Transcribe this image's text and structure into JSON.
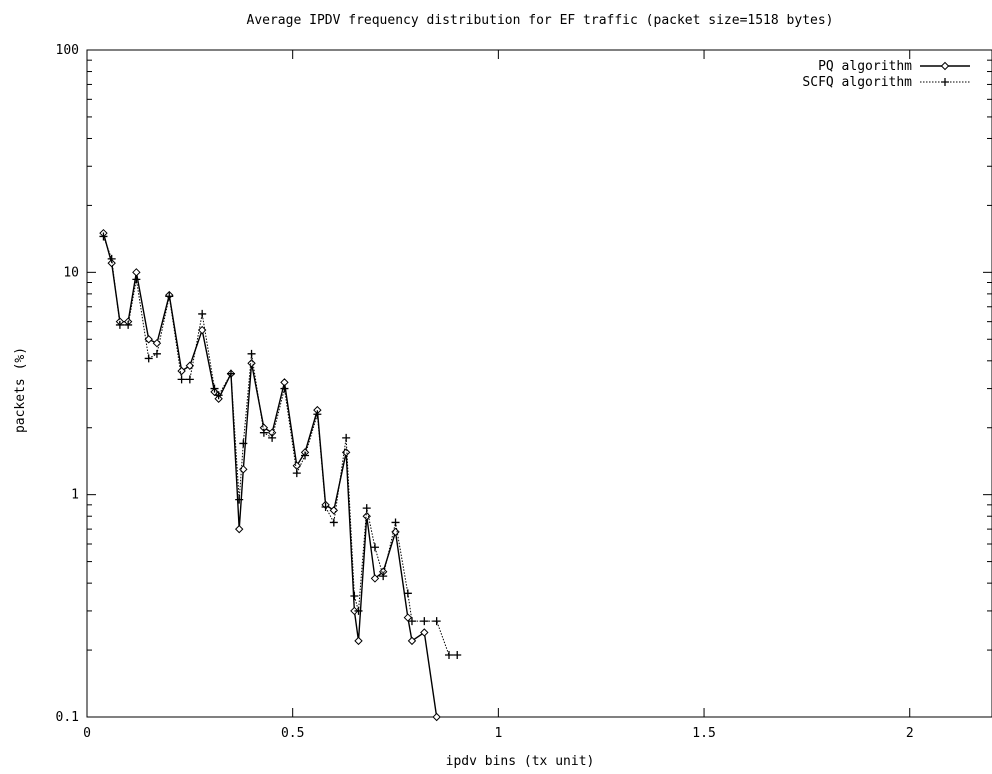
{
  "chart_data": {
    "type": "line",
    "title": "Average IPDV frequency distribution for EF traffic (packet size=1518 bytes)",
    "xlabel": "ipdv bins (tx unit)",
    "ylabel": "packets (%)",
    "xlim": [
      0,
      2.2
    ],
    "ylim": [
      0.1,
      100
    ],
    "y_scale": "log",
    "x_ticks": [
      {
        "value": 0,
        "label": "0"
      },
      {
        "value": 0.5,
        "label": "0.5"
      },
      {
        "value": 1,
        "label": "1"
      },
      {
        "value": 1.5,
        "label": "1.5"
      },
      {
        "value": 2,
        "label": "2"
      }
    ],
    "y_ticks": [
      {
        "value": 0.1,
        "label": "0.1"
      },
      {
        "value": 1,
        "label": "1"
      },
      {
        "value": 10,
        "label": "10"
      },
      {
        "value": 100,
        "label": "100"
      }
    ],
    "grid": false,
    "legend_position": "top-right",
    "series": [
      {
        "name": "PQ algorithm",
        "line": "solid",
        "marker": "diamond",
        "points": [
          [
            0.04,
            15.0
          ],
          [
            0.06,
            11.0
          ],
          [
            0.08,
            6.0
          ],
          [
            0.1,
            6.0
          ],
          [
            0.12,
            10.0
          ],
          [
            0.15,
            5.0
          ],
          [
            0.17,
            4.8
          ],
          [
            0.2,
            7.9
          ],
          [
            0.23,
            3.6
          ],
          [
            0.25,
            3.8
          ],
          [
            0.28,
            5.5
          ],
          [
            0.31,
            2.9
          ],
          [
            0.32,
            2.7
          ],
          [
            0.35,
            3.5
          ],
          [
            0.37,
            0.7
          ],
          [
            0.38,
            1.3
          ],
          [
            0.4,
            3.9
          ],
          [
            0.43,
            2.0
          ],
          [
            0.45,
            1.9
          ],
          [
            0.48,
            3.2
          ],
          [
            0.51,
            1.35
          ],
          [
            0.53,
            1.55
          ],
          [
            0.56,
            2.4
          ],
          [
            0.58,
            0.9
          ],
          [
            0.6,
            0.85
          ],
          [
            0.63,
            1.55
          ],
          [
            0.65,
            0.3
          ],
          [
            0.66,
            0.22
          ],
          [
            0.68,
            0.8
          ],
          [
            0.7,
            0.42
          ],
          [
            0.72,
            0.45
          ],
          [
            0.75,
            0.68
          ],
          [
            0.78,
            0.28
          ],
          [
            0.79,
            0.22
          ],
          [
            0.82,
            0.24
          ],
          [
            0.85,
            0.1
          ]
        ]
      },
      {
        "name": "SCFQ algorithm",
        "line": "dotted",
        "marker": "plus",
        "points": [
          [
            0.04,
            14.5
          ],
          [
            0.06,
            11.5
          ],
          [
            0.08,
            5.8
          ],
          [
            0.1,
            5.8
          ],
          [
            0.12,
            9.3
          ],
          [
            0.15,
            4.1
          ],
          [
            0.17,
            4.3
          ],
          [
            0.2,
            7.8
          ],
          [
            0.23,
            3.3
          ],
          [
            0.25,
            3.3
          ],
          [
            0.28,
            6.5
          ],
          [
            0.31,
            3.0
          ],
          [
            0.32,
            2.8
          ],
          [
            0.35,
            3.5
          ],
          [
            0.37,
            0.95
          ],
          [
            0.38,
            1.7
          ],
          [
            0.4,
            4.3
          ],
          [
            0.43,
            1.9
          ],
          [
            0.45,
            1.8
          ],
          [
            0.48,
            3.0
          ],
          [
            0.51,
            1.25
          ],
          [
            0.53,
            1.5
          ],
          [
            0.56,
            2.3
          ],
          [
            0.58,
            0.88
          ],
          [
            0.6,
            0.75
          ],
          [
            0.63,
            1.8
          ],
          [
            0.65,
            0.35
          ],
          [
            0.66,
            0.3
          ],
          [
            0.68,
            0.87
          ],
          [
            0.7,
            0.58
          ],
          [
            0.72,
            0.43
          ],
          [
            0.75,
            0.75
          ],
          [
            0.78,
            0.36
          ],
          [
            0.79,
            0.27
          ],
          [
            0.82,
            0.27
          ],
          [
            0.85,
            0.27
          ],
          [
            0.88,
            0.19
          ],
          [
            0.9,
            0.19
          ]
        ]
      }
    ]
  }
}
